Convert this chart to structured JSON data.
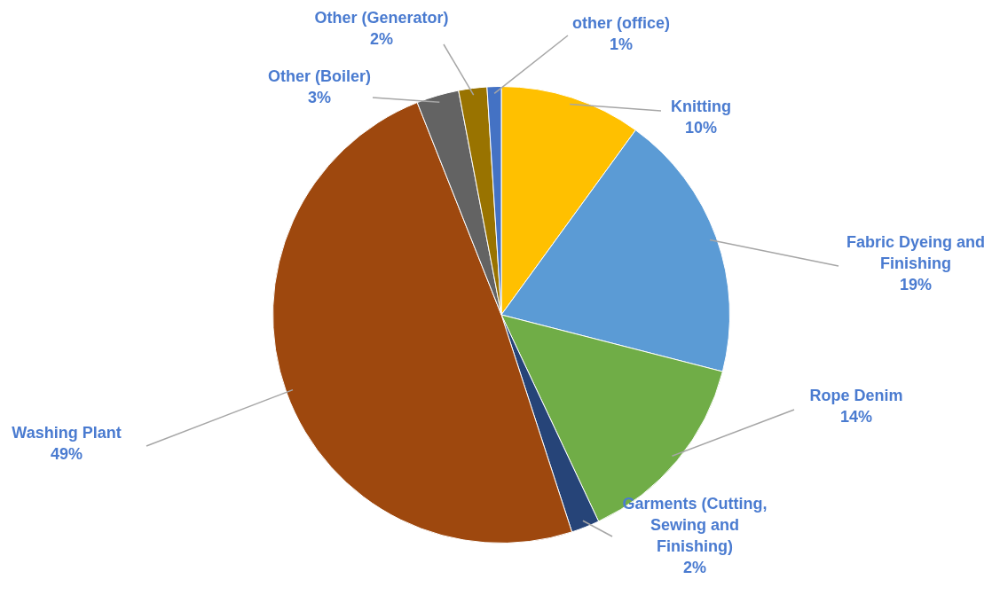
{
  "chart_data": {
    "type": "pie",
    "categories": [
      "Knitting",
      "Fabric Dyeing and Finishing",
      "Rope Denim",
      "Garments (Cutting, Sewing and Finishing)",
      "Washing Plant",
      "Other (Boiler)",
      "Other (Generator)",
      "other (office)"
    ],
    "values": [
      10,
      19,
      14,
      2,
      49,
      3,
      2,
      1
    ],
    "value_labels": [
      "10%",
      "19%",
      "14%",
      "2%",
      "49%",
      "3%",
      "2%",
      "1%"
    ],
    "colors": [
      "#ffc000",
      "#5b9bd5",
      "#70ad47",
      "#264478",
      "#9e480e",
      "#636363",
      "#997300",
      "#4472c4"
    ]
  }
}
